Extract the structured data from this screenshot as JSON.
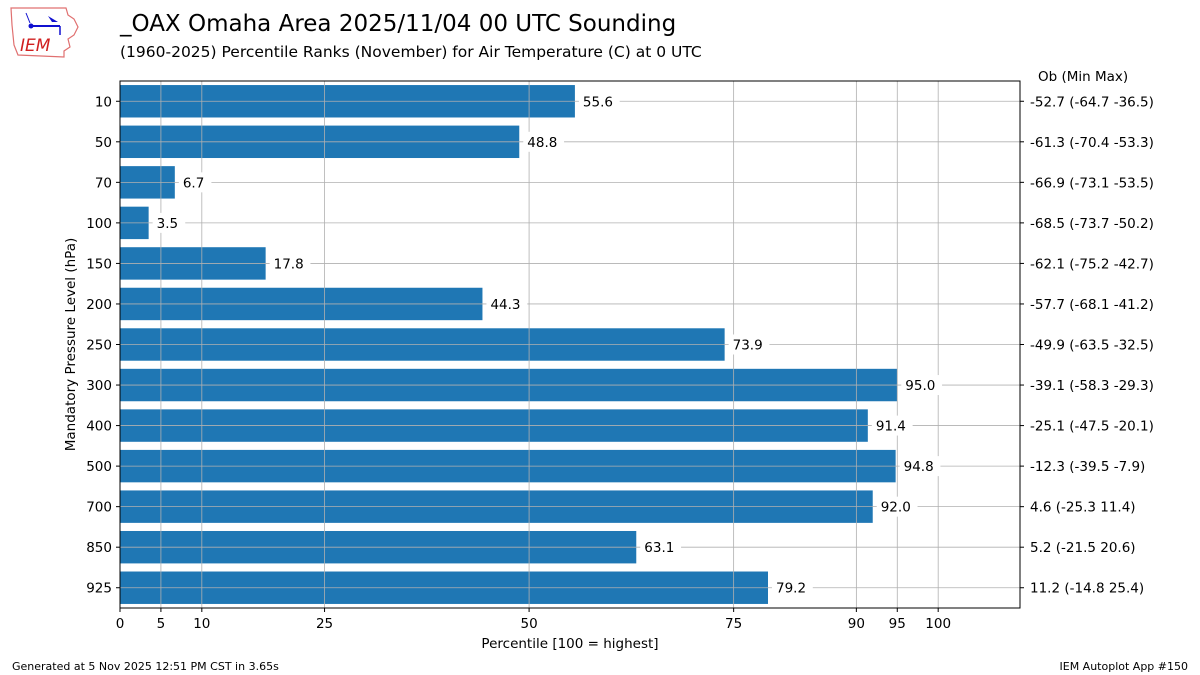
{
  "header": {
    "title": "_OAX Omaha Area  2025/11/04 00 UTC Sounding",
    "subtitle": "(1960-2025) Percentile Ranks (November) for Air Temperature (C) at 0 UTC",
    "logo_text": "IEM"
  },
  "footer": {
    "left": "Generated at 5 Nov 2025 12:51 PM CST in 3.65s",
    "right": "IEM Autoplot App #150"
  },
  "chart_data": {
    "type": "bar",
    "orientation": "horizontal",
    "xlabel": "Percentile [100 = highest]",
    "ylabel": "Mandatory Pressure Level (hPa)",
    "right_header": "Ob  (Min  Max)",
    "xlim": [
      0,
      110
    ],
    "xticks": [
      0,
      5,
      10,
      25,
      50,
      75,
      90,
      95,
      100
    ],
    "grid": true,
    "bar_color": "#1f77b4",
    "categories": [
      "10",
      "50",
      "70",
      "100",
      "150",
      "200",
      "250",
      "300",
      "400",
      "500",
      "700",
      "850",
      "925"
    ],
    "values": [
      55.6,
      48.8,
      6.7,
      3.5,
      17.8,
      44.3,
      73.9,
      95.0,
      91.4,
      94.8,
      92.0,
      63.1,
      79.2
    ],
    "value_labels": [
      "55.6",
      "48.8",
      "6.7",
      "3.5",
      "17.8",
      "44.3",
      "73.9",
      "95.0",
      "91.4",
      "94.8",
      "92.0",
      "63.1",
      "79.2"
    ],
    "right_labels": [
      "-52.7 (-64.7 -36.5)",
      "-61.3 (-70.4 -53.3)",
      "-66.9 (-73.1 -53.5)",
      "-68.5 (-73.7 -50.2)",
      "-62.1 (-75.2 -42.7)",
      "-57.7 (-68.1 -41.2)",
      "-49.9 (-63.5 -32.5)",
      "-39.1 (-58.3 -29.3)",
      "-25.1 (-47.5 -20.1)",
      "-12.3 (-39.5 -7.9)",
      "4.6 (-25.3 11.4)",
      "5.2 (-21.5 20.6)",
      "11.2 (-14.8 25.4)"
    ]
  }
}
